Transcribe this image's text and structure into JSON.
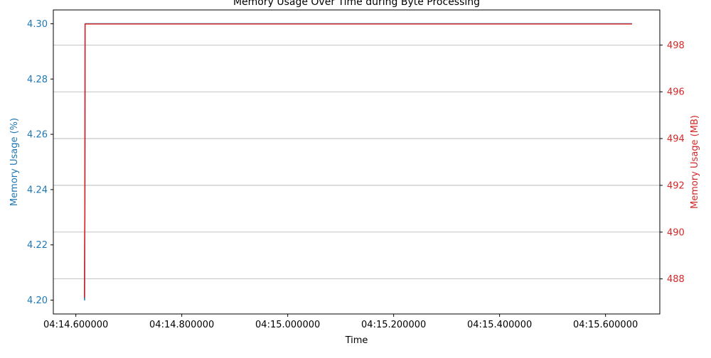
{
  "chart_data": {
    "type": "line",
    "title": "Memory Usage Over Time during Byte Processing",
    "xlabel": "Time",
    "ylabel_left": "Memory Usage (%)",
    "ylabel_right": "Memory Usage (MB)",
    "x_ticks": [
      "04:14.600000",
      "04:14.800000",
      "04:15.000000",
      "04:15.200000",
      "04:15.400000",
      "04:15.600000"
    ],
    "x_tick_values": [
      0.6,
      0.8,
      1.0,
      1.2,
      1.4,
      1.6
    ],
    "xlim": [
      0.5575,
      1.7025
    ],
    "y_left_ticks": [
      "4.20",
      "4.22",
      "4.24",
      "4.26",
      "4.28",
      "4.30"
    ],
    "y_left_tick_values": [
      4.2,
      4.22,
      4.24,
      4.26,
      4.28,
      4.3
    ],
    "ylim_left": [
      4.195,
      4.305
    ],
    "y_right_ticks": [
      "488",
      "490",
      "492",
      "494",
      "496",
      "498"
    ],
    "y_right_tick_values": [
      488,
      490,
      492,
      494,
      496,
      498
    ],
    "ylim_right": [
      486.5,
      499.5
    ],
    "grid": "y-right",
    "colors": {
      "left": "#1f77b4",
      "right": "#d62728",
      "grid": "#b0b0b0",
      "axis": "#000000"
    },
    "series": [
      {
        "axis": "left",
        "x": [
          0.6163,
          0.6165,
          0.617,
          0.6175,
          1.65
        ],
        "values": [
          4.2,
          4.2,
          4.23,
          4.3,
          4.3
        ]
      },
      {
        "axis": "right",
        "x": [
          0.6163,
          0.617,
          0.6175,
          1.65
        ],
        "values": [
          487.2,
          491.0,
          498.9,
          498.9
        ]
      }
    ]
  }
}
